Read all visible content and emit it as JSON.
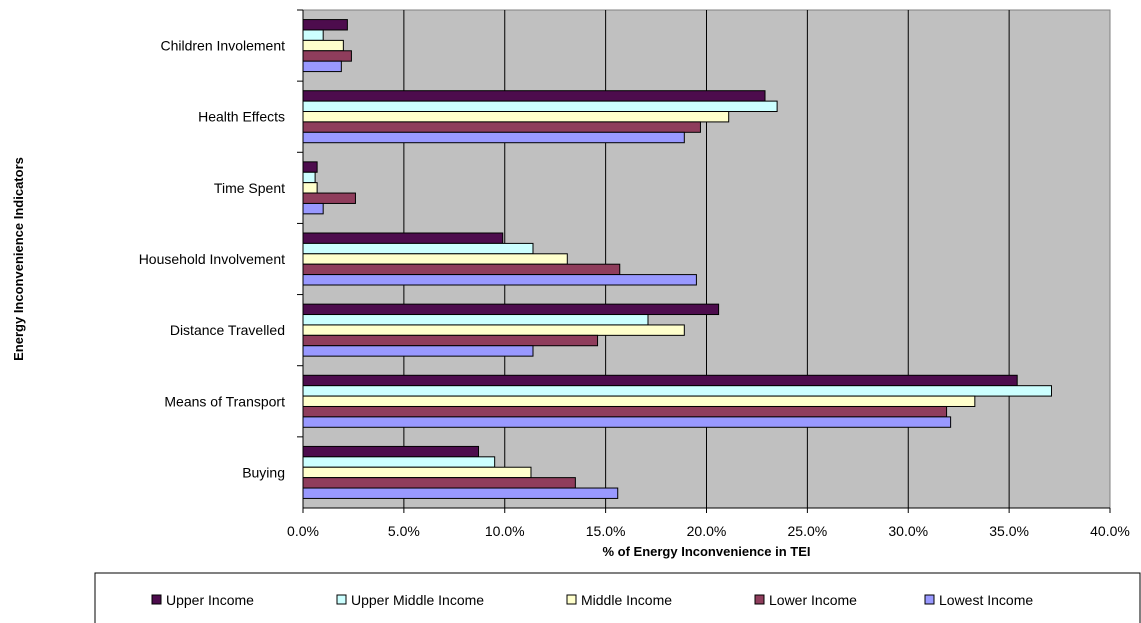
{
  "chart_data": {
    "type": "bar",
    "orientation": "horizontal",
    "title": "",
    "xlabel": "% of Energy Inconvenience in TEI",
    "ylabel": "Energy Inconvenience Indicators",
    "xlim": [
      0,
      40
    ],
    "x_ticks": [
      "0.0%",
      "5.0%",
      "10.0%",
      "15.0%",
      "20.0%",
      "25.0%",
      "30.0%",
      "35.0%",
      "40.0%"
    ],
    "grid": true,
    "legend_position": "bottom",
    "categories": [
      "Children Involement",
      "Health Effects",
      "Time Spent",
      "Household Involvement",
      "Distance Travelled",
      "Means of Transport",
      "Buying"
    ],
    "series": [
      {
        "name": "Upper Income",
        "color": "#4d0c4d",
        "values": [
          2.2,
          22.9,
          0.7,
          9.9,
          20.6,
          35.4,
          8.7
        ]
      },
      {
        "name": "Upper Middle Income",
        "color": "#ccffff",
        "values": [
          1.0,
          23.5,
          0.6,
          11.4,
          17.1,
          37.1,
          9.5
        ]
      },
      {
        "name": "Middle Income",
        "color": "#ffffcc",
        "values": [
          2.0,
          21.1,
          0.7,
          13.1,
          18.9,
          33.3,
          11.3
        ]
      },
      {
        "name": "Lower Income",
        "color": "#8f3d5c",
        "values": [
          2.4,
          19.7,
          2.6,
          15.7,
          14.6,
          31.9,
          13.5
        ]
      },
      {
        "name": "Lowest Income",
        "color": "#9999ff",
        "values": [
          1.9,
          18.9,
          1.0,
          19.5,
          11.4,
          32.1,
          15.6
        ]
      }
    ]
  }
}
